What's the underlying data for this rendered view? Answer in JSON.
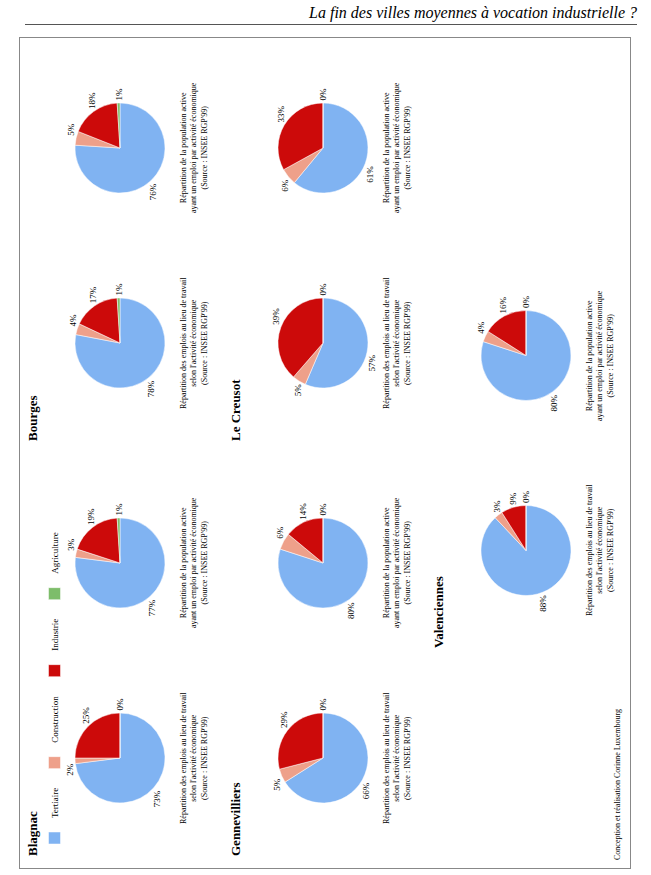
{
  "header": "La fin des villes moyennes à vocation industrielle ?",
  "credit": "Conception et réalisation Corinne Luxembourg",
  "chart_data": [
    {
      "type": "pie",
      "city": "Blagnac",
      "title": [
        "Répartition des emplois au lieu de travail",
        "selon l'activité économique",
        "(Source : INSEE RGP'99)"
      ],
      "categories": [
        "Tertiaire",
        "Construction",
        "Industrie",
        "Agriculture"
      ],
      "values": [
        73,
        2,
        25,
        0
      ],
      "value_labels": [
        "73%",
        "2%",
        "25%",
        "0%"
      ],
      "colors": [
        "#80b3f2",
        "#eea08a",
        "#cc0a0a",
        "#7dbd6a"
      ],
      "data_labels": true
    },
    {
      "type": "pie",
      "city": "Blagnac",
      "title": [
        "Répartition de la population active",
        "ayant un emploi par activité économique",
        "(Source : INSEE RGP'99)"
      ],
      "categories": [
        "Tertiaire",
        "Construction",
        "Industrie",
        "Agriculture"
      ],
      "values": [
        77,
        3,
        19,
        1
      ],
      "value_labels": [
        "77%",
        "3%",
        "19%",
        "1%"
      ],
      "colors": [
        "#80b3f2",
        "#eea08a",
        "#cc0a0a",
        "#7dbd6a"
      ],
      "data_labels": true
    },
    {
      "type": "pie",
      "city": "Bourges",
      "title": [
        "Répartition des emplois au lieu de travail",
        "selon l'activité économique",
        "(Source : INSEE RGP'99)"
      ],
      "categories": [
        "Tertiaire",
        "Construction",
        "Industrie",
        "Agriculture"
      ],
      "values": [
        78,
        4,
        17,
        1
      ],
      "value_labels": [
        "78%",
        "4%",
        "17%",
        "1%"
      ],
      "colors": [
        "#80b3f2",
        "#eea08a",
        "#cc0a0a",
        "#7dbd6a"
      ],
      "data_labels": true
    },
    {
      "type": "pie",
      "city": "Bourges",
      "title": [
        "Répartition de la population active",
        "ayant un emploi par activité économique",
        "(Source : INSEE RGP'99)"
      ],
      "categories": [
        "Tertiaire",
        "Construction",
        "Industrie",
        "Agriculture"
      ],
      "values": [
        76,
        5,
        18,
        1
      ],
      "value_labels": [
        "76%",
        "5%",
        "18%",
        "1%"
      ],
      "colors": [
        "#80b3f2",
        "#eea08a",
        "#cc0a0a",
        "#7dbd6a"
      ],
      "data_labels": true
    },
    {
      "type": "pie",
      "city": "Gennevilliers",
      "title": [
        "Répartition des emplois au lieu de travail",
        "selon l'activité économique",
        "(Source : INSEE RGP'99)"
      ],
      "categories": [
        "Tertiaire",
        "Construction",
        "Industrie",
        "Agriculture"
      ],
      "values": [
        66,
        5,
        29,
        0
      ],
      "value_labels": [
        "66%",
        "5%",
        "29%",
        "0%"
      ],
      "colors": [
        "#80b3f2",
        "#eea08a",
        "#cc0a0a",
        "#7dbd6a"
      ],
      "data_labels": true
    },
    {
      "type": "pie",
      "city": "Gennevilliers",
      "title": [
        "Répartition de la population active",
        "ayant un emploi par activité économique",
        "(Source : INSEE RGP'99)"
      ],
      "categories": [
        "Tertiaire",
        "Construction",
        "Industrie",
        "Agriculture"
      ],
      "values": [
        80,
        6,
        14,
        0
      ],
      "value_labels": [
        "80%",
        "6%",
        "14%",
        "0%"
      ],
      "colors": [
        "#80b3f2",
        "#eea08a",
        "#cc0a0a",
        "#7dbd6a"
      ],
      "data_labels": true
    },
    {
      "type": "pie",
      "city": "Le Creusot",
      "title": [
        "Répartition des emplois au lieu de travail",
        "selon l'activité économique",
        "(Source : INSEE RGP'99)"
      ],
      "categories": [
        "Tertiaire",
        "Construction",
        "Industrie",
        "Agriculture"
      ],
      "values": [
        57,
        5,
        39,
        0
      ],
      "value_labels": [
        "57%",
        "5%",
        "39%",
        "0%"
      ],
      "colors": [
        "#80b3f2",
        "#eea08a",
        "#cc0a0a",
        "#7dbd6a"
      ],
      "data_labels": true
    },
    {
      "type": "pie",
      "city": "Le Creusot",
      "title": [
        "Répartition de la population active",
        "ayant un emploi par activité économique",
        "(Source : INSEE RGP'99)"
      ],
      "categories": [
        "Tertiaire",
        "Construction",
        "Industrie",
        "Agriculture"
      ],
      "values": [
        61,
        6,
        33,
        0
      ],
      "value_labels": [
        "61%",
        "6%",
        "33%",
        "0%"
      ],
      "colors": [
        "#80b3f2",
        "#eea08a",
        "#cc0a0a",
        "#7dbd6a"
      ],
      "data_labels": true
    },
    {
      "type": "pie",
      "city": "Valenciennes",
      "title": [
        "Répartition des emplois au lieu de travail",
        "selon l'activité économique",
        "(Source : INSEE RGP'99)"
      ],
      "categories": [
        "Tertiaire",
        "Construction",
        "Industrie",
        "Agriculture"
      ],
      "values": [
        88,
        3,
        9,
        0
      ],
      "value_labels": [
        "88%",
        "3%",
        "9%",
        "0%"
      ],
      "colors": [
        "#80b3f2",
        "#eea08a",
        "#cc0a0a",
        "#7dbd6a"
      ],
      "data_labels": true
    },
    {
      "type": "pie",
      "city": "Valenciennes",
      "title": [
        "Répartition de la population active",
        "ayant un emploi par activité économique",
        "(Source : INSEE RGP'99)"
      ],
      "categories": [
        "Tertiaire",
        "Construction",
        "Industrie",
        "Agriculture"
      ],
      "values": [
        80,
        4,
        16,
        0
      ],
      "value_labels": [
        "80%",
        "4%",
        "16%",
        "0%"
      ],
      "colors": [
        "#80b3f2",
        "#eea08a",
        "#cc0a0a",
        "#7dbd6a"
      ],
      "data_labels": true
    }
  ]
}
